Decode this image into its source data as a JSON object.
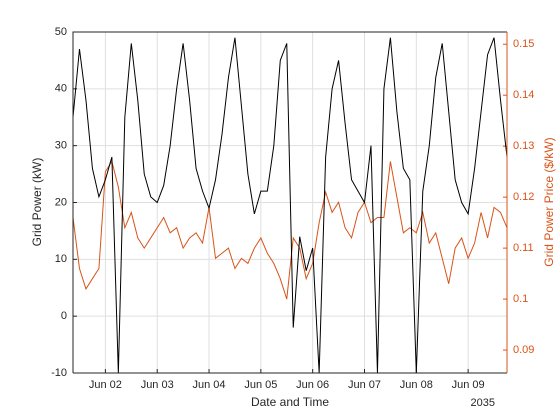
{
  "chart_data": {
    "type": "line",
    "xlabel": "Date and Time",
    "x_secondary_label": "2035",
    "ylabel": "Grid Power (kW)",
    "y2label": "Grid Power Price ($/kW)",
    "grid": true,
    "x": [
      1.375,
      1.5,
      1.625,
      1.75,
      1.875,
      2,
      2.125,
      2.25,
      2.375,
      2.5,
      2.625,
      2.75,
      2.875,
      3,
      3.125,
      3.25,
      3.375,
      3.5,
      3.625,
      3.75,
      3.875,
      4,
      4.125,
      4.25,
      4.375,
      4.5,
      4.625,
      4.75,
      4.875,
      5,
      5.125,
      5.25,
      5.375,
      5.5,
      5.625,
      5.75,
      5.875,
      6,
      6.125,
      6.25,
      6.375,
      6.5,
      6.625,
      6.75,
      6.875,
      7,
      7.125,
      7.25,
      7.375,
      7.5,
      7.625,
      7.75,
      7.875,
      8,
      8.125,
      8.25,
      8.375,
      8.5,
      8.625,
      8.75,
      8.875,
      9,
      9.125,
      9.25,
      9.375,
      9.5,
      9.625,
      9.75
    ],
    "xlim": [
      1.375,
      9.75
    ],
    "xticks": [
      {
        "value": 2,
        "label": "Jun 02"
      },
      {
        "value": 3,
        "label": "Jun 03"
      },
      {
        "value": 4,
        "label": "Jun 04"
      },
      {
        "value": 5,
        "label": "Jun 05"
      },
      {
        "value": 6,
        "label": "Jun 06"
      },
      {
        "value": 7,
        "label": "Jun 07"
      },
      {
        "value": 8,
        "label": "Jun 08"
      },
      {
        "value": 9,
        "label": "Jun 09"
      }
    ],
    "ylim": [
      -10,
      50
    ],
    "yticks": [
      -10,
      0,
      10,
      20,
      30,
      40,
      50
    ],
    "y2lim": [
      0.0855,
      0.1524
    ],
    "y2ticks": [
      0.09,
      0.1,
      0.11,
      0.12,
      0.13,
      0.14,
      0.15
    ],
    "y2color": "#d95319",
    "series": [
      {
        "color": "#000000",
        "values": [
          35,
          47,
          38,
          26,
          21,
          24,
          28,
          -10,
          35,
          48,
          38,
          25,
          21,
          20,
          23,
          30,
          40,
          48,
          38,
          26,
          22,
          19,
          24,
          32,
          42,
          49,
          37,
          25,
          18,
          22,
          22,
          30,
          45,
          48,
          -2,
          14,
          8,
          12,
          -10,
          28,
          40,
          45,
          34,
          24,
          22,
          20,
          30,
          -10,
          40,
          49,
          36,
          26,
          24,
          -10,
          22,
          30,
          42,
          48,
          36,
          24,
          20,
          18,
          26,
          36,
          46,
          49,
          38,
          28
        ]
      },
      {
        "color": "#d95319",
        "axis": "y2",
        "values": [
          0.116,
          0.106,
          0.102,
          0.104,
          0.106,
          0.125,
          0.127,
          0.122,
          0.114,
          0.117,
          0.112,
          0.11,
          0.112,
          0.114,
          0.116,
          0.113,
          0.114,
          0.11,
          0.112,
          0.113,
          0.111,
          0.118,
          0.108,
          0.109,
          0.11,
          0.106,
          0.108,
          0.107,
          0.11,
          0.112,
          0.109,
          0.107,
          0.104,
          0.1,
          0.112,
          0.11,
          0.104,
          0.107,
          0.115,
          0.121,
          0.117,
          0.119,
          0.114,
          0.112,
          0.117,
          0.119,
          0.115,
          0.116,
          0.116,
          0.127,
          0.12,
          0.113,
          0.114,
          0.113,
          0.117,
          0.111,
          0.113,
          0.108,
          0.103,
          0.11,
          0.112,
          0.108,
          0.111,
          0.117,
          0.112,
          0.118,
          0.117,
          0.114
        ]
      }
    ]
  }
}
